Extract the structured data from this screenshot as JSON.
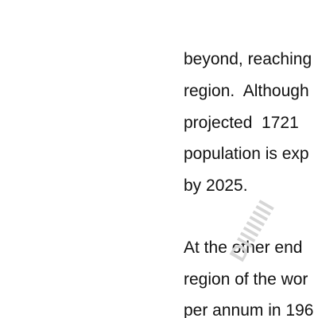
{
  "document": {
    "paragraphs": [
      {
        "lines": [
          "beyond, reaching",
          "region.  Although",
          "projected  1721",
          "population is exp",
          "by 2025."
        ]
      },
      {
        "lines": [
          "At the other end",
          "region of the wor",
          "per annum in 196"
        ]
      }
    ],
    "watermark": {
      "text": "Dllllllll",
      "color": "#d6d6d6"
    }
  }
}
